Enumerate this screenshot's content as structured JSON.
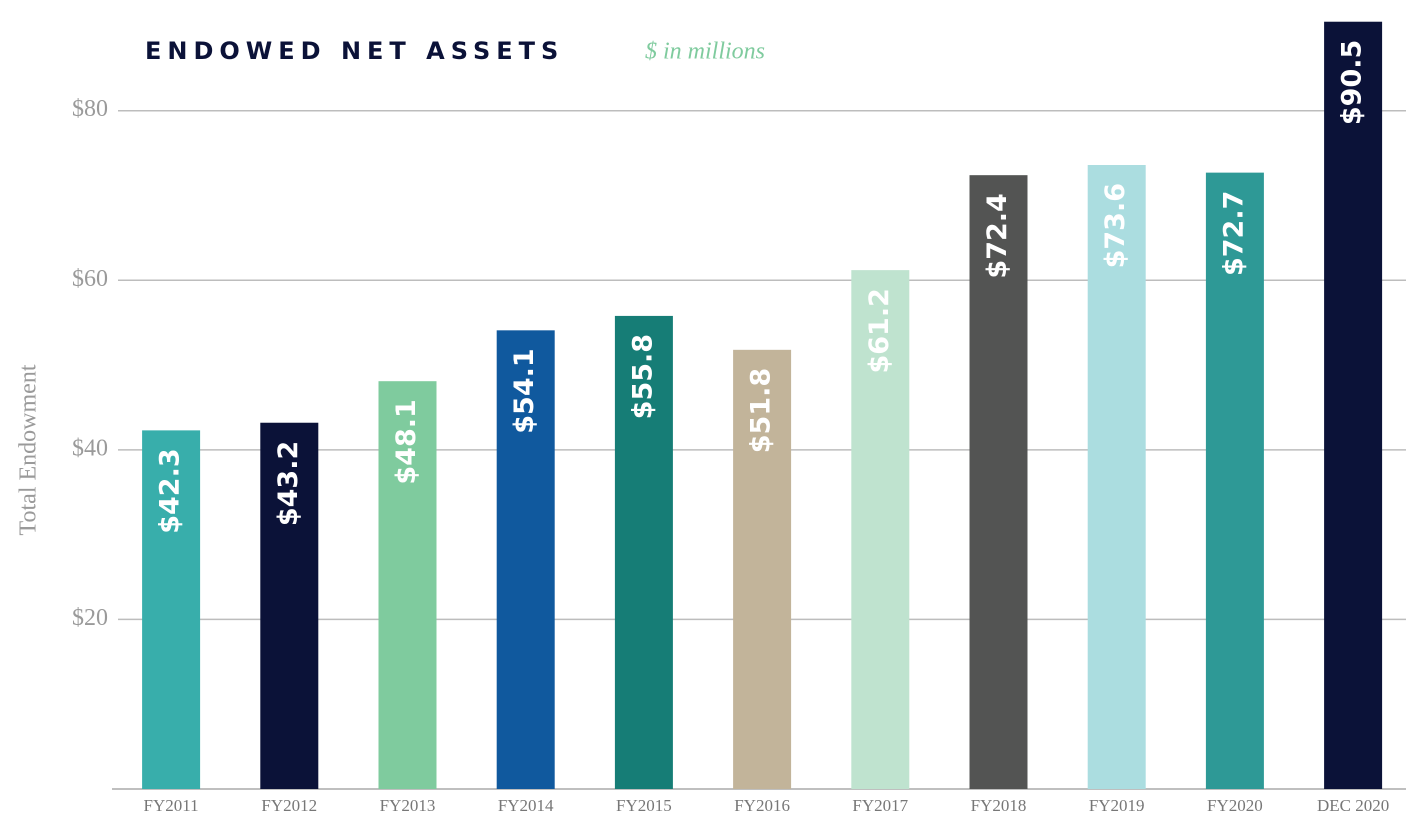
{
  "chart_data": {
    "type": "bar",
    "title": "ENDOWED NET ASSETS",
    "subtitle": "$ in millions",
    "y_label": "Total Endowment",
    "categories": [
      "FY2011",
      "FY2012",
      "FY2013",
      "FY2014",
      "FY2015",
      "FY2016",
      "FY2017",
      "FY2018",
      "FY2019",
      "FY2020",
      "DEC 2020"
    ],
    "values": [
      42.3,
      43.2,
      48.1,
      54.1,
      55.8,
      51.8,
      61.2,
      72.4,
      73.6,
      72.7,
      90.5
    ],
    "value_labels": [
      "$42.3",
      "$43.2",
      "$48.1",
      "$54.1",
      "$55.8",
      "$51.8",
      "$61.2",
      "$72.4",
      "$73.6",
      "$72.7",
      "$90.5"
    ],
    "colors": [
      "#38aeab",
      "#0b1238",
      "#7fcb9e",
      "#10599e",
      "#167d76",
      "#c2b49a",
      "#bfe3cf",
      "#535453",
      "#abdde0",
      "#2e9996",
      "#0b1238"
    ],
    "ylim": [
      0,
      92
    ],
    "yticks": [
      {
        "value": 20,
        "label": "$20"
      },
      {
        "value": 40,
        "label": "$40"
      },
      {
        "value": 60,
        "label": "$60"
      },
      {
        "value": 80,
        "label": "$80"
      }
    ],
    "grid": true
  }
}
